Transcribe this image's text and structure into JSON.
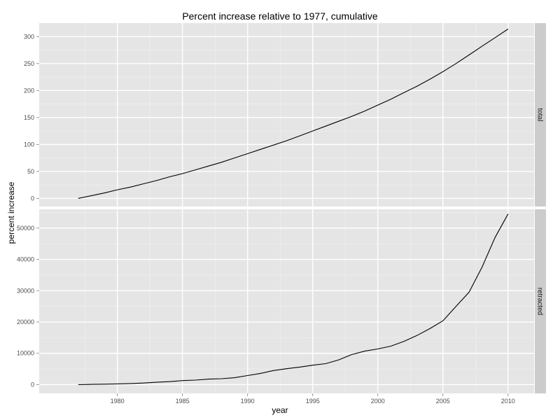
{
  "chart_data": {
    "type": "line",
    "title": "Percent increase relative to 1977, cumulative",
    "xlabel": "year",
    "ylabel": "percent increase",
    "xlim": [
      1974,
      2012
    ],
    "x_ticks": [
      1980,
      1985,
      1990,
      1995,
      2000,
      2005,
      2010
    ],
    "grid": true,
    "panels": [
      {
        "strip_label": "total",
        "ylim": [
          -15,
          325
        ],
        "y_ticks": [
          0,
          50,
          100,
          150,
          200,
          250,
          300
        ],
        "x": [
          1977,
          1978,
          1979,
          1980,
          1981,
          1982,
          1983,
          1984,
          1985,
          1986,
          1987,
          1988,
          1989,
          1990,
          1991,
          1992,
          1993,
          1994,
          1995,
          1996,
          1997,
          1998,
          1999,
          2000,
          2001,
          2002,
          2003,
          2004,
          2005,
          2006,
          2007,
          2008,
          2009,
          2010
        ],
        "values": [
          0,
          5,
          10,
          16,
          21,
          27,
          33,
          40,
          46,
          53,
          60,
          67,
          75,
          83,
          91,
          99,
          107,
          116,
          125,
          134,
          143,
          152,
          162,
          173,
          184,
          196,
          208,
          221,
          235,
          250,
          266,
          282,
          298,
          314
        ]
      },
      {
        "strip_label": "retracted",
        "ylim": [
          -2800,
          56000
        ],
        "y_ticks": [
          0,
          10000,
          20000,
          30000,
          40000,
          50000
        ],
        "x": [
          1977,
          1978,
          1979,
          1980,
          1981,
          1982,
          1983,
          1984,
          1985,
          1986,
          1987,
          1988,
          1989,
          1990,
          1991,
          1992,
          1993,
          1994,
          1995,
          1996,
          1997,
          1998,
          1999,
          2000,
          2001,
          2002,
          2003,
          2004,
          2005,
          2006,
          2007,
          2008,
          2009,
          2010
        ],
        "values": [
          0,
          80,
          150,
          250,
          350,
          500,
          750,
          950,
          1300,
          1450,
          1750,
          1900,
          2200,
          2900,
          3600,
          4500,
          5100,
          5600,
          6200,
          6700,
          7900,
          9600,
          10700,
          11400,
          12300,
          13800,
          15700,
          17900,
          20400,
          25000,
          29500,
          37500,
          47000,
          54500
        ]
      }
    ]
  }
}
